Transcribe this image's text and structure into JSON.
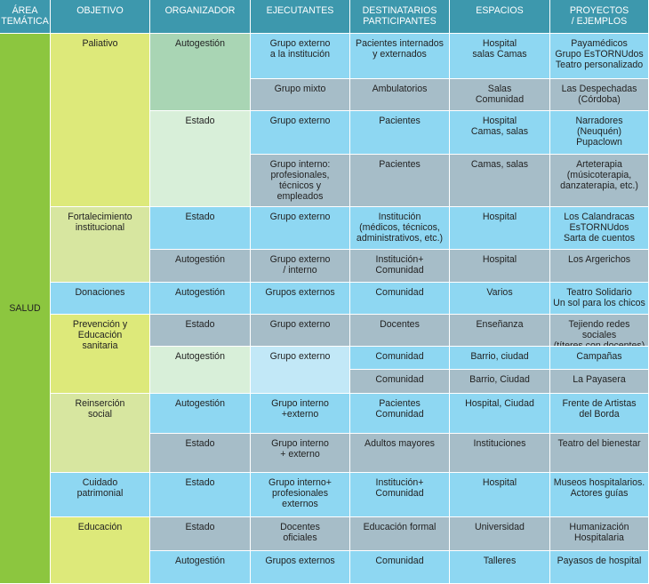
{
  "colors": {
    "header": "#3d98ad",
    "area": "#8cc63f",
    "objective": "#dde97a",
    "objective_light": "#d7e6a0",
    "org_dark": "#a9d5b4",
    "org_light": "#d8efd9",
    "blue": "#8ed7f2",
    "gray": "#a6bdc8",
    "blue_light": "#c2e8f7"
  },
  "header": [
    "ÁREA\nTEMÁTICA",
    "OBJETIVO",
    "ORGANIZADOR",
    "EJECUTANTES",
    "DESTINATARIOS\nPARTICIPANTES",
    "ESPACIOS",
    "PROYECTOS\n/ EJEMPLOS"
  ],
  "area": {
    "label": "SALUD"
  },
  "objectives": [
    {
      "label": "Paliativo"
    },
    {
      "label": "Fortalecimiento\ninstitucional"
    },
    {
      "label": "Donaciones"
    },
    {
      "label": "Prevención y\nEducación\nsanitaria"
    },
    {
      "label": "Reinserción\nsocial"
    },
    {
      "label": "Cuidado\npatrimonial"
    },
    {
      "label": "Educación"
    }
  ],
  "organizers": [
    "Autogestión",
    "Estado",
    "Estado",
    "Autogestión",
    "Autogestión",
    "Estado",
    "Autogestión",
    "Autogestión",
    "Estado",
    "Estado",
    "Estado",
    "Autogestión"
  ],
  "executors": [
    "Grupo externo\na la institución",
    "Grupo mixto",
    "Grupo externo",
    "Grupo interno:\nprofesionales,\ntécnicos y\nempleados",
    "Grupo externo",
    "Grupo externo\n/ interno",
    "Grupos externos",
    "Grupo externo",
    "Grupo externo",
    "Grupo interno\n+externo",
    "Grupo interno\n+ externo",
    "Grupo interno+\nprofesionales\nexternos",
    "Docentes\noficiales",
    "Grupos externos"
  ],
  "rows": [
    {
      "dest": "Pacientes internados\ny externados",
      "esp": "Hospital\nsalas Camas",
      "proy": "Payamédicos\nGrupo EsTORNUdos\nTeatro personalizado"
    },
    {
      "dest": "Ambulatorios",
      "esp": "Salas\nComunidad",
      "proy": "Las Despechadas\n(Córdoba)"
    },
    {
      "dest": "Pacientes",
      "esp": "Hospital\nCamas, salas",
      "proy": "Narradores\n(Neuquén)\nPupaclown"
    },
    {
      "dest": "Pacientes",
      "esp": "Camas, salas",
      "proy": "Arteterapia\n(músicoterapia,\ndanzaterapia, etc.)"
    },
    {
      "dest": "Institución\n(médicos, técnicos,\nadministrativos, etc.)",
      "esp": "Hospital",
      "proy": "Los Calandracas\nEsTORNUdos\nSarta de cuentos"
    },
    {
      "dest": "Institución+\nComunidad",
      "esp": "Hospital",
      "proy": "Los Argerichos"
    },
    {
      "dest": "Comunidad",
      "esp": "Varios",
      "proy": "Teatro Solidario\nUn sol para los chicos"
    },
    {
      "dest": "Docentes",
      "esp": "Enseñanza",
      "proy": "Tejiendo redes sociales\n(títeres con docentes)"
    },
    {
      "dest": "Comunidad",
      "esp": "Barrio, ciudad",
      "proy": "Campañas"
    },
    {
      "dest": "Comunidad",
      "esp": "Barrio, Ciudad",
      "proy": "La Payasera"
    },
    {
      "dest": "Pacientes\nComunidad",
      "esp": "Hospital, Ciudad",
      "proy": "Frente de Artistas\ndel Borda"
    },
    {
      "dest": "Adultos mayores",
      "esp": "Instituciones",
      "proy": "Teatro del bienestar"
    },
    {
      "dest": "Institución+\nComunidad",
      "esp": "Hospital",
      "proy": "Museos hospitalarios.\nActores guías"
    },
    {
      "dest": "Educación formal",
      "esp": "Universidad",
      "proy": "Humanización\nHospitalaria"
    },
    {
      "dest": "Comunidad",
      "esp": "Talleres",
      "proy": "Payasos de hospital"
    }
  ]
}
